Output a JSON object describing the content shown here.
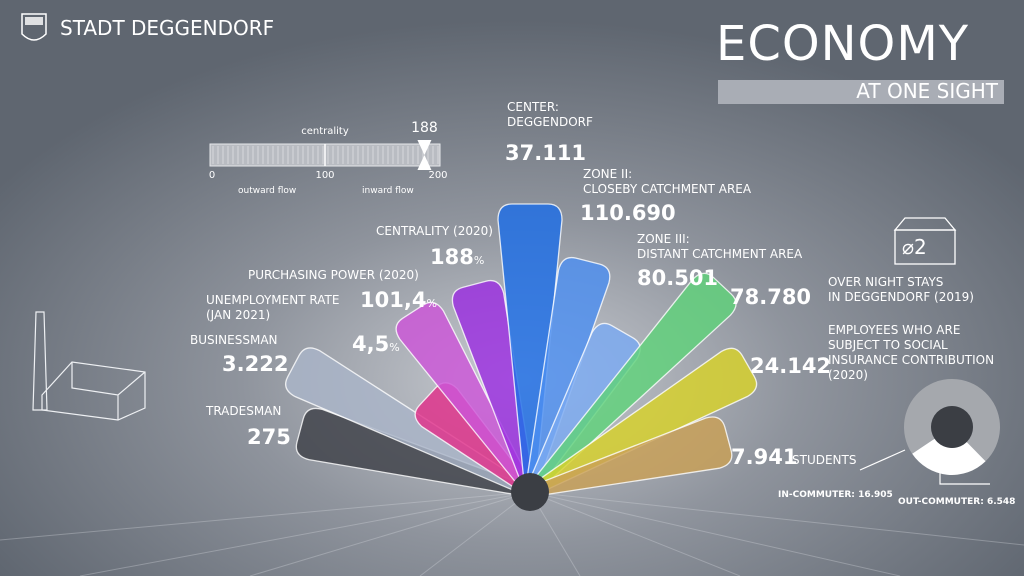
{
  "header": {
    "city": "STADT DEGGENDORF"
  },
  "title": {
    "main": "ECONOMY",
    "sub": "AT ONE SIGHT"
  },
  "gauge": {
    "label": "centrality",
    "value": 188,
    "min": 0,
    "max": 200,
    "ticks": [
      0,
      100,
      200
    ],
    "left_label": "outward flow",
    "right_label": "inward flow"
  },
  "items": [
    {
      "label": [
        "TRADESMAN"
      ],
      "value": "275",
      "color": "#3e4148"
    },
    {
      "label": [
        "BUSINESSMAN"
      ],
      "value": "3.222",
      "color": "#a9b4c8"
    },
    {
      "label": [
        "UNEMPLOYMENT RATE",
        "(JAN 2021)"
      ],
      "value": "4,5",
      "unit": "%",
      "color": "#e0308a"
    },
    {
      "label": [
        "PURCHASING POWER (2020)"
      ],
      "value": "101,4",
      "unit": "%",
      "color": "#cc55d8"
    },
    {
      "label": [
        "CENTRALITY (2020)"
      ],
      "value": "188",
      "unit": "%",
      "color": "#9b2ee0"
    },
    {
      "label": [
        "CENTER:",
        "DEGGENDORF"
      ],
      "value": "37.111",
      "color": "#1d6ee6"
    },
    {
      "label": [
        "ZONE II:",
        "CLOSEBY CATCHMENT AREA"
      ],
      "value": "110.690",
      "color": "#4d8ff0"
    },
    {
      "label": [
        "ZONE III:",
        "DISTANT CATCHMENT AREA"
      ],
      "value": "80.501",
      "color": "#7aaaf2"
    },
    {
      "label": [
        "OVER NIGHT STAYS",
        "IN DEGGENDORF (2019)"
      ],
      "value": "78.780",
      "color": "#5fd27a"
    },
    {
      "label": [
        "EMPLOYEES WHO ARE",
        "SUBJECT TO SOCIAL",
        "INSURANCE CONTRIBUTION",
        "(2020)"
      ],
      "value": "24.142",
      "color": "#d8d22a"
    },
    {
      "label": [
        "STUDENTS"
      ],
      "value": "7.941",
      "color": "#c9a055"
    }
  ],
  "avg_stay": "⌀2",
  "commuters": [
    {
      "label": "IN-COMMUTER:",
      "value": 16905,
      "value_label": "16.905",
      "color": "#a5a8ad"
    },
    {
      "label": "OUT-COMMUTER:",
      "value": 6548,
      "value_label": "6.548",
      "color": "#ffffff"
    }
  ]
}
